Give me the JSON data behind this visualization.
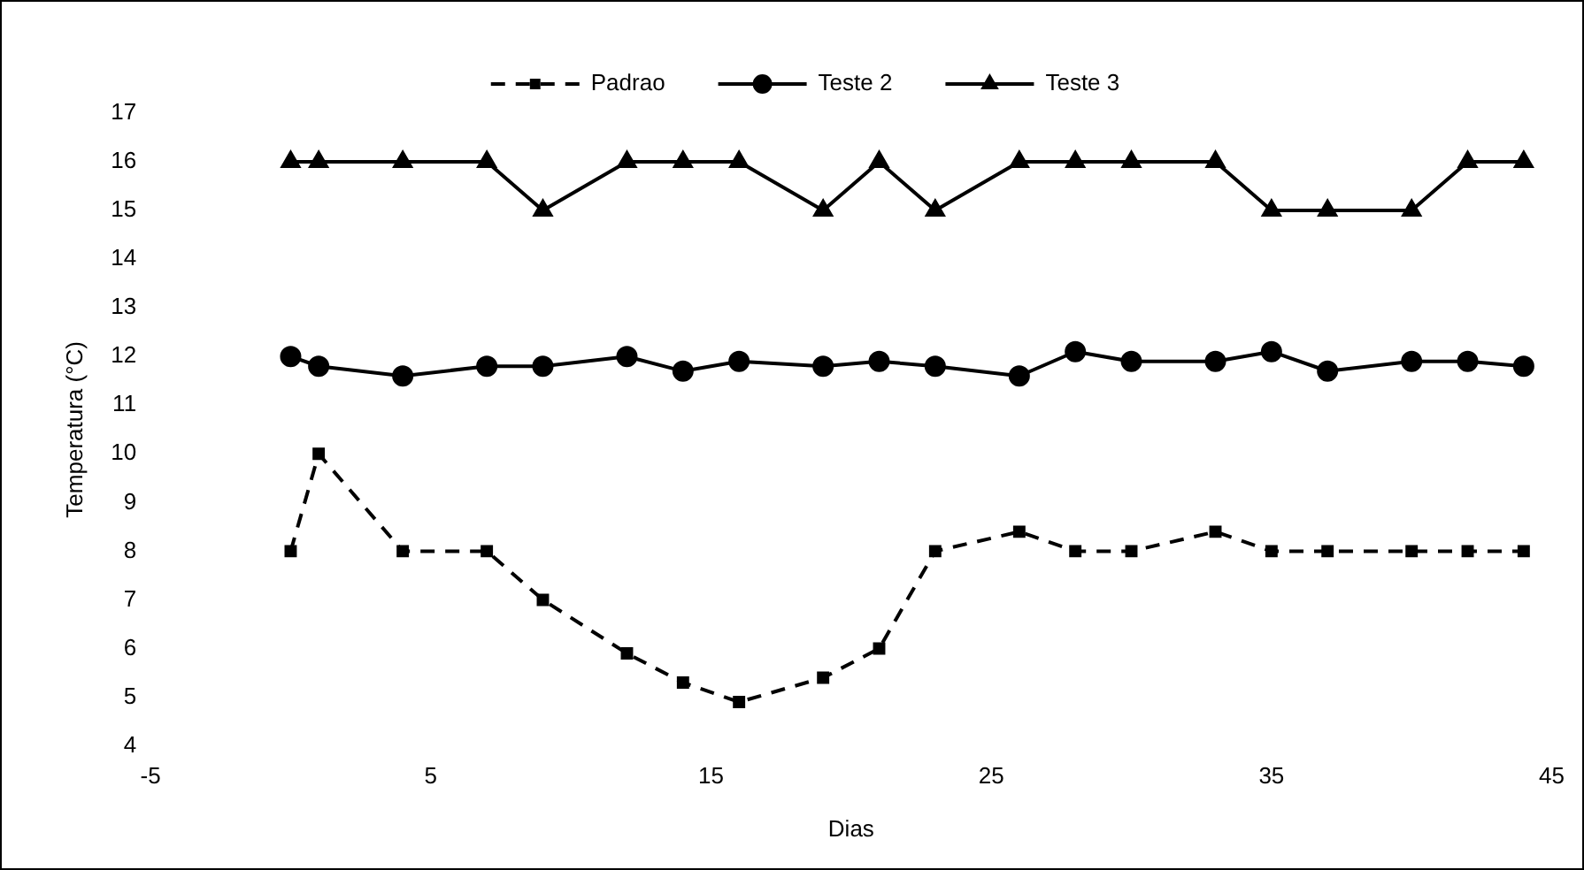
{
  "chart_data": {
    "type": "line",
    "xlabel": "Dias",
    "ylabel": "Temperatura (°C)",
    "x": [
      0,
      1,
      4,
      7,
      9,
      12,
      14,
      16,
      19,
      21,
      23,
      26,
      28,
      30,
      33,
      35,
      37,
      40,
      42,
      44
    ],
    "series": [
      {
        "name": "Padrao",
        "color": "#000000",
        "marker": "square",
        "line_style": "dashed",
        "values": [
          8,
          10,
          8,
          8,
          7,
          5.9,
          5.3,
          4.9,
          5.4,
          6,
          8,
          8.4,
          8,
          8,
          8.4,
          8,
          8,
          8,
          8,
          8
        ]
      },
      {
        "name": "Teste 2",
        "color": "#000000",
        "marker": "circle",
        "line_style": "solid",
        "values": [
          12,
          11.8,
          11.6,
          11.8,
          11.8,
          12,
          11.7,
          11.9,
          11.8,
          11.9,
          11.8,
          11.6,
          12.1,
          11.9,
          11.9,
          12.1,
          11.7,
          11.9,
          11.9,
          11.8
        ]
      },
      {
        "name": "Teste 3",
        "color": "#000000",
        "marker": "triangle",
        "line_style": "solid",
        "values": [
          16,
          16,
          16,
          16,
          15,
          16,
          16,
          16,
          15,
          16,
          15,
          16,
          16,
          16,
          16,
          15,
          15,
          15,
          16,
          16
        ]
      }
    ],
    "xlim": [
      -5,
      45
    ],
    "xticks": [
      -5,
      5,
      15,
      25,
      35,
      45
    ],
    "ylim": [
      4,
      17
    ],
    "yticks": [
      4,
      5,
      6,
      7,
      8,
      9,
      10,
      11,
      12,
      13,
      14,
      15,
      16,
      17
    ],
    "grid": false,
    "legend": "top"
  }
}
